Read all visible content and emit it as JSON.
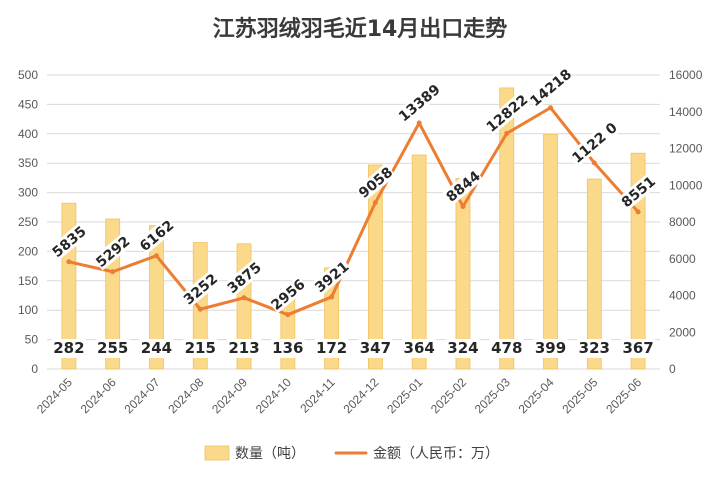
{
  "chart_data": {
    "type": "bar+line",
    "title": "江苏羽绒羽毛近14月出口走势",
    "categories": [
      "2024-05",
      "2024-06",
      "2024-07",
      "2024-08",
      "2024-09",
      "2024-10",
      "2024-11",
      "2024-12",
      "2025-01",
      "2025-02",
      "2025-03",
      "2025-04",
      "2025-05",
      "2025-06"
    ],
    "series": [
      {
        "name": "数量（吨）",
        "type": "bar",
        "axis": "left",
        "values": [
          282,
          255,
          244,
          215,
          213,
          136,
          172,
          347,
          364,
          324,
          478,
          399,
          323,
          367
        ],
        "labels": [
          "282",
          "255",
          "244",
          "215",
          "213",
          "136",
          "172",
          "347",
          "364",
          "324",
          "478",
          "399",
          "323",
          "367"
        ]
      },
      {
        "name": "金额（人民币：万）",
        "type": "line",
        "axis": "right",
        "values": [
          5835,
          5292,
          6162,
          3252,
          3875,
          2956,
          3921,
          9058,
          13389,
          8844,
          12822,
          14218,
          11220,
          8551
        ],
        "labels": [
          "5835",
          "5292",
          "6162",
          "3252",
          "3875",
          "2956",
          "3921",
          "9058",
          "13389",
          "8844",
          "12822",
          "14218",
          "1122 0",
          "8551"
        ]
      }
    ],
    "y_left": {
      "range": [
        0,
        500
      ],
      "ticks": [
        "0",
        "50",
        "100",
        "150",
        "200",
        "250",
        "300",
        "350",
        "400",
        "450",
        "500"
      ]
    },
    "y_right": {
      "range": [
        0,
        16000
      ],
      "ticks": [
        "0",
        "2000",
        "4000",
        "6000",
        "8000",
        "10000",
        "12000",
        "14000",
        "16000"
      ]
    },
    "grid": true,
    "legend": "bottom",
    "colors": {
      "bar": "#FAD98B",
      "bar_stroke": "#F2C25F",
      "line": "#ED7D31",
      "grid": "#D9D9D9"
    }
  }
}
